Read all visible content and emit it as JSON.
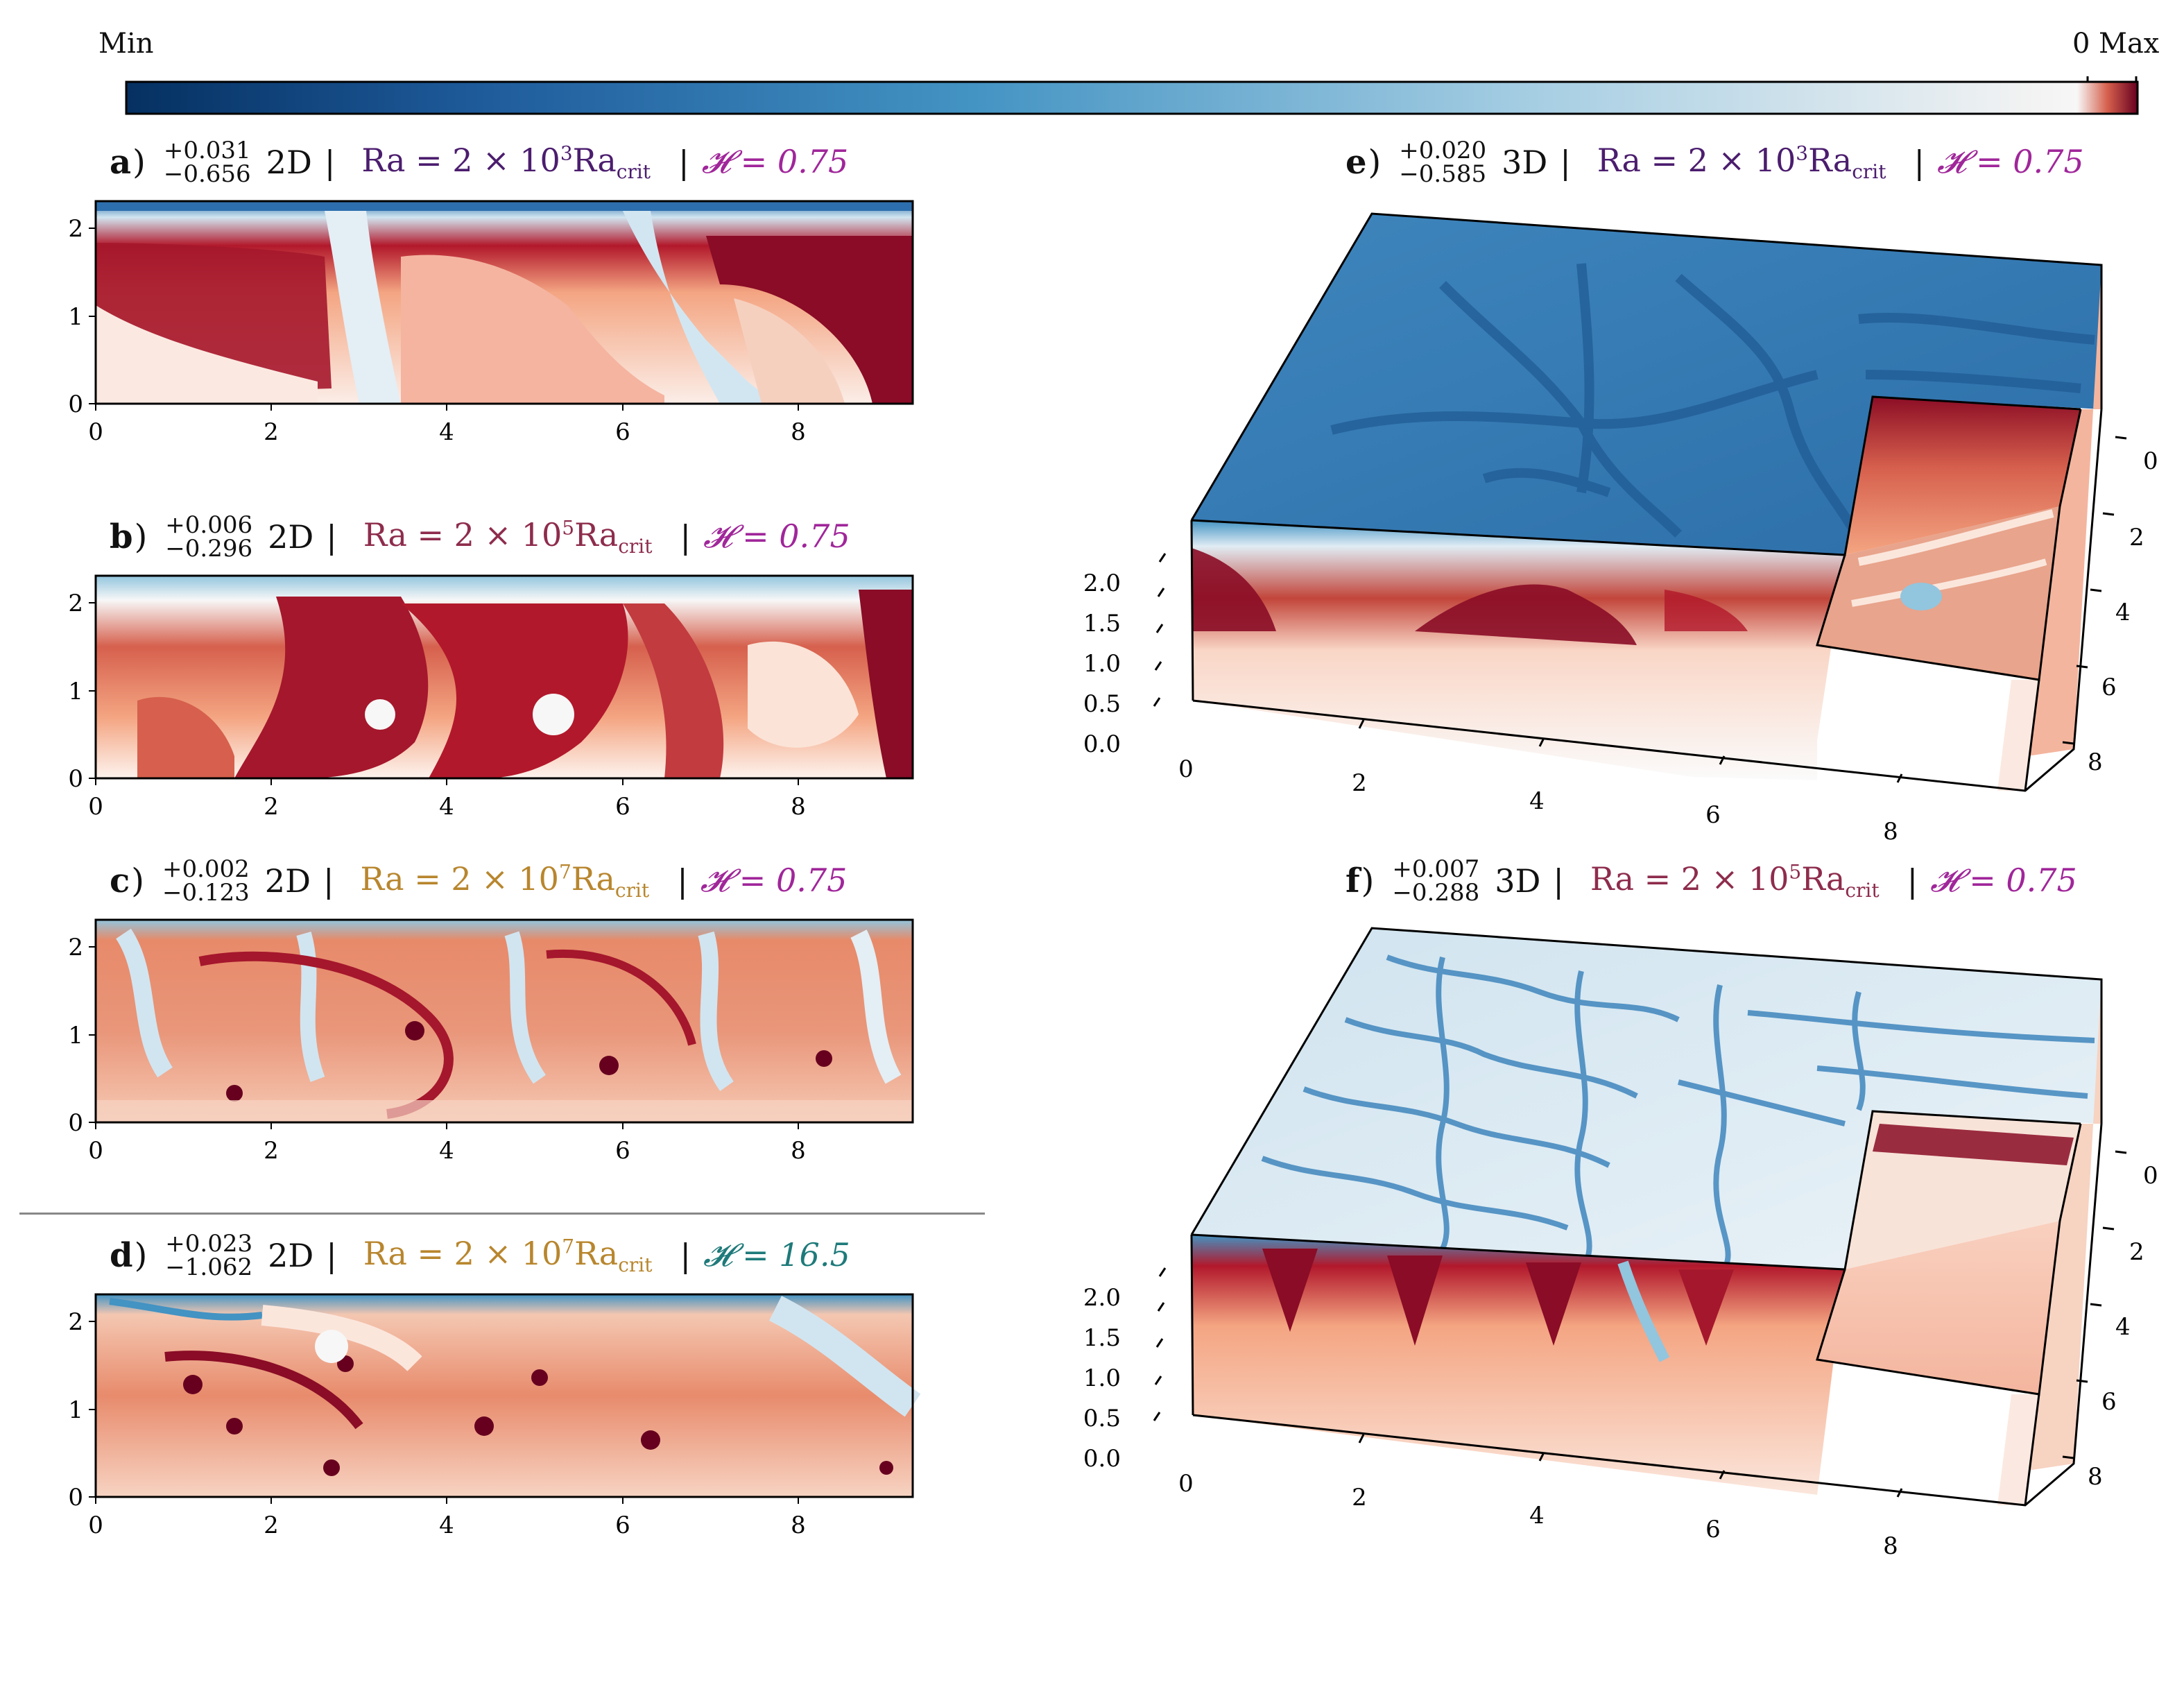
{
  "colorbar": {
    "min_label": "Min",
    "zero_label": "0",
    "max_label": "Max",
    "colormap": "RdBu_r",
    "colors": {
      "min": "#053061",
      "mid": "#f7f7f7",
      "max": "#67001f"
    }
  },
  "colors": {
    "ra_1e3": "#4b1d6e",
    "ra_1e5": "#8e2c4c",
    "ra_1e7": "#b8862e",
    "h_075": "#a0269a",
    "h_165": "#1f7a7a"
  },
  "panels": [
    {
      "letter": "a",
      "paren": ")",
      "range_plus": "+0.031",
      "range_minus": "−0.656",
      "dim": "2D",
      "sep": "|",
      "ra_text": "Ra = 2 × 10",
      "ra_exp": "3",
      "ra_suffix": "Ra",
      "ra_sub": "crit",
      "h_text": "𝓗 = 0.75"
    },
    {
      "letter": "b",
      "paren": ")",
      "range_plus": "+0.006",
      "range_minus": "−0.296",
      "dim": "2D",
      "sep": "|",
      "ra_text": "Ra = 2 × 10",
      "ra_exp": "5",
      "ra_suffix": "Ra",
      "ra_sub": "crit",
      "h_text": "𝓗 = 0.75"
    },
    {
      "letter": "c",
      "paren": ")",
      "range_plus": "+0.002",
      "range_minus": "−0.123",
      "dim": "2D",
      "sep": "|",
      "ra_text": "Ra = 2 × 10",
      "ra_exp": "7",
      "ra_suffix": "Ra",
      "ra_sub": "crit",
      "h_text": "𝓗 = 0.75"
    },
    {
      "letter": "d",
      "paren": ")",
      "range_plus": "+0.023",
      "range_minus": "−1.062",
      "dim": "2D",
      "sep": "|",
      "ra_text": "Ra = 2 × 10",
      "ra_exp": "7",
      "ra_suffix": "Ra",
      "ra_sub": "crit",
      "h_text": "𝓗 = 16.5"
    },
    {
      "letter": "e",
      "paren": ")",
      "range_plus": "+0.020",
      "range_minus": "−0.585",
      "dim": "3D",
      "sep": "|",
      "ra_text": "Ra = 2 × 10",
      "ra_exp": "3",
      "ra_suffix": "Ra",
      "ra_sub": "crit",
      "h_text": "𝓗 = 0.75"
    },
    {
      "letter": "f",
      "paren": ")",
      "range_plus": "+0.007",
      "range_minus": "−0.288",
      "dim": "3D",
      "sep": "|",
      "ra_text": "Ra = 2 × 10",
      "ra_exp": "5",
      "ra_suffix": "Ra",
      "ra_sub": "crit",
      "h_text": "𝓗 = 0.75"
    }
  ],
  "chart_data": [
    {
      "type": "heatmap",
      "panel": "a",
      "x_ticks": [
        "0",
        "2",
        "4",
        "6",
        "8"
      ],
      "y_ticks": [
        "0",
        "1",
        "2"
      ],
      "xlim": [
        0,
        9.3
      ],
      "ylim": [
        0,
        2.3
      ]
    },
    {
      "type": "heatmap",
      "panel": "b",
      "x_ticks": [
        "0",
        "2",
        "4",
        "6",
        "8"
      ],
      "y_ticks": [
        "0",
        "1",
        "2"
      ],
      "xlim": [
        0,
        9.3
      ],
      "ylim": [
        0,
        2.3
      ]
    },
    {
      "type": "heatmap",
      "panel": "c",
      "x_ticks": [
        "0",
        "2",
        "4",
        "6",
        "8"
      ],
      "y_ticks": [
        "0",
        "1",
        "2"
      ],
      "xlim": [
        0,
        9.3
      ],
      "ylim": [
        0,
        2.3
      ]
    },
    {
      "type": "heatmap",
      "panel": "d",
      "x_ticks": [
        "0",
        "2",
        "4",
        "6",
        "8"
      ],
      "y_ticks": [
        "0",
        "1",
        "2"
      ],
      "xlim": [
        0,
        9.3
      ],
      "ylim": [
        0,
        2.3
      ]
    },
    {
      "type": "heatmap",
      "panel": "e",
      "x_ticks": [
        "0",
        "2",
        "4",
        "6",
        "8"
      ],
      "y_ticks": [
        "0",
        "2",
        "4",
        "6",
        "8"
      ],
      "z_ticks": [
        "0.0",
        "0.5",
        "1.0",
        "1.5",
        "2.0"
      ]
    },
    {
      "type": "heatmap",
      "panel": "f",
      "x_ticks": [
        "0",
        "2",
        "4",
        "6",
        "8"
      ],
      "y_ticks": [
        "0",
        "2",
        "4",
        "6",
        "8"
      ],
      "z_ticks": [
        "0.0",
        "0.5",
        "1.0",
        "1.5",
        "2.0"
      ]
    }
  ]
}
